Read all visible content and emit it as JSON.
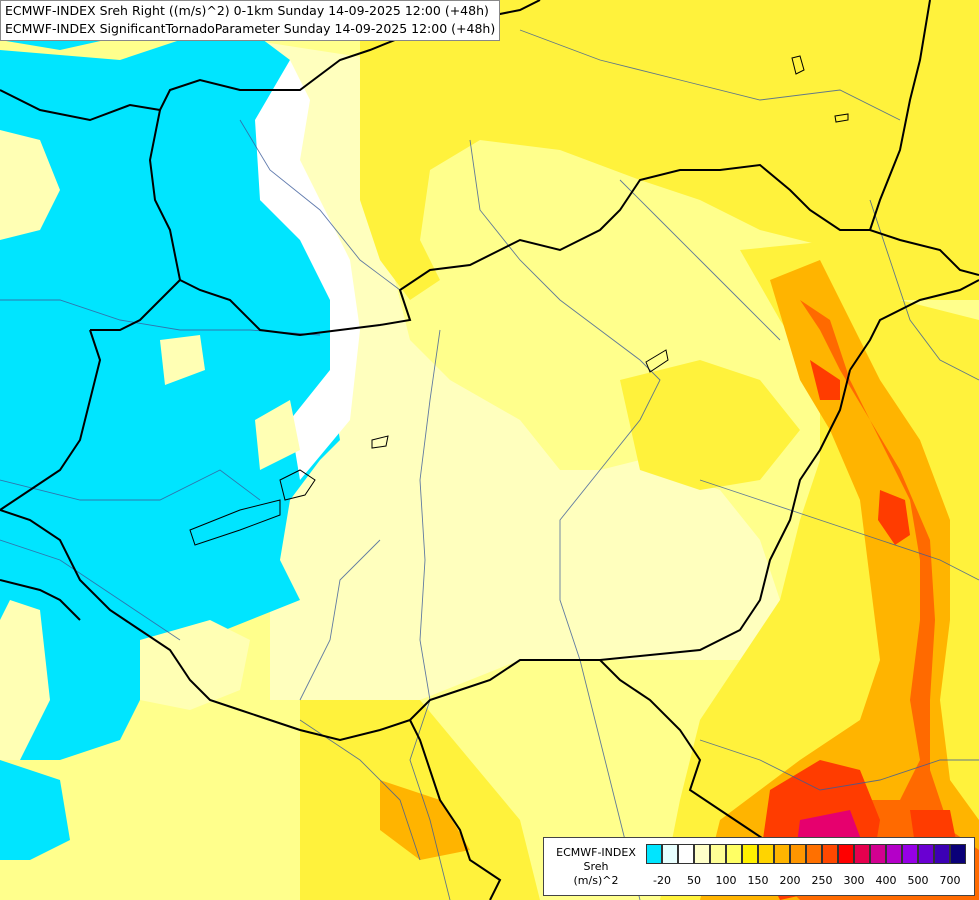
{
  "titles": {
    "line1": "ECMWF-INDEX Sreh Right ((m/s)^2) 0-1km Sunday 14-09-2025 12:00 (+48h)",
    "line2": "ECMWF-INDEX SignificantTornadoParameter Sunday 14-09-2025 12:00 (+48h)"
  },
  "legend": {
    "line1": "ECMWF-INDEX",
    "line2": "Sreh",
    "line3": "(m/s)^2",
    "colors": [
      "#00e5ff",
      "#e8ffff",
      "#ffffff",
      "#ffffc8",
      "#ffff96",
      "#ffff64",
      "#fff000",
      "#ffd400",
      "#ffb400",
      "#ff9600",
      "#ff7000",
      "#ff4800",
      "#ff0000",
      "#e6004e",
      "#d20090",
      "#b400c8",
      "#9600e6",
      "#6a00d2",
      "#3c00b4",
      "#0a0078"
    ],
    "ticks": [
      "-20",
      "50",
      "100",
      "150",
      "200",
      "250",
      "300",
      "400",
      "500",
      "700"
    ]
  },
  "palette": {
    "cyan": "#00e5ff",
    "light_yellow": "#ffffb4",
    "yellow": "#fff23c",
    "orange": "#ffb400",
    "red": "#ff3c00",
    "magenta": "#e6006e"
  }
}
